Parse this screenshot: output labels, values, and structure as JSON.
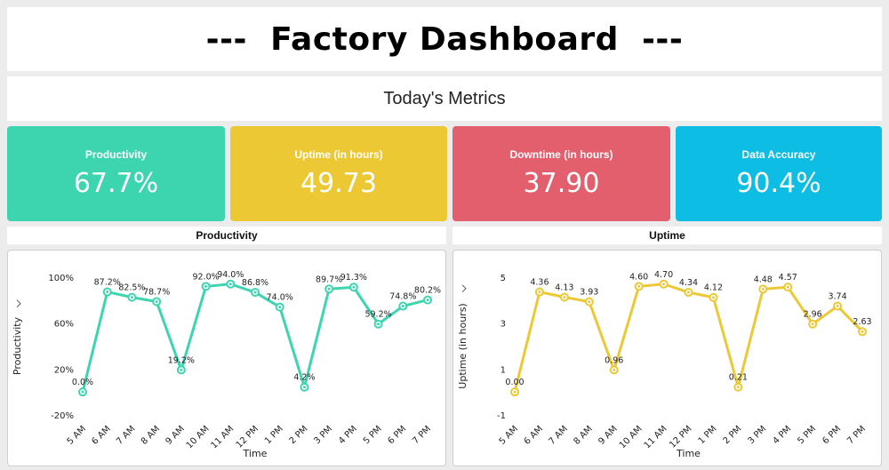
{
  "header": {
    "title": "---  Factory Dashboard  ---"
  },
  "metrics": {
    "heading": "Today's Metrics",
    "cards": [
      {
        "label": "Productivity",
        "value": "67.7%",
        "color": "#3dd5b0"
      },
      {
        "label": "Uptime (in hours)",
        "value": "49.73",
        "color": "#ecc934"
      },
      {
        "label": "Downtime (in hours)",
        "value": "37.90",
        "color": "#e45f6e"
      },
      {
        "label": "Data Accuracy",
        "value": "90.4%",
        "color": "#0dbde3"
      }
    ]
  },
  "chart_data": [
    {
      "type": "line",
      "title": "Productivity",
      "xlabel": "Time",
      "ylabel": "Productivity",
      "ylim": [
        -20,
        100
      ],
      "yticks": [
        "-20%",
        "20%",
        "60%",
        "100%"
      ],
      "ytick_values": [
        -20,
        20,
        60,
        100
      ],
      "categories": [
        "5 AM",
        "6 AM",
        "7 AM",
        "8 AM",
        "9 AM",
        "10 AM",
        "11 AM",
        "12 PM",
        "1 PM",
        "2 PM",
        "3 PM",
        "4 PM",
        "5 PM",
        "6 PM",
        "7 PM"
      ],
      "values": [
        0.0,
        87.2,
        82.5,
        78.7,
        19.2,
        92.0,
        94.0,
        86.8,
        74.0,
        4.2,
        89.7,
        91.3,
        59.2,
        74.8,
        80.2
      ],
      "labels": [
        "0.0%",
        "87.2%",
        "82.5%",
        "78.7%",
        "19.2%",
        "92.0%",
        "94.0%",
        "86.8%",
        "74.0%",
        "4.2%",
        "89.7%",
        "91.3%",
        "59.2%",
        "74.8%",
        "80.2%"
      ],
      "color": "#3dd5b0",
      "grid": false,
      "legend": "none"
    },
    {
      "type": "line",
      "title": "Uptime",
      "xlabel": "Time",
      "ylabel": "Uptime (in hours)",
      "ylim": [
        -1,
        5
      ],
      "yticks": [
        "-1",
        "1",
        "3",
        "5"
      ],
      "ytick_values": [
        -1,
        1,
        3,
        5
      ],
      "categories": [
        "5 AM",
        "6 AM",
        "7 AM",
        "8 AM",
        "9 AM",
        "10 AM",
        "11 AM",
        "12 PM",
        "1 PM",
        "2 PM",
        "3 PM",
        "4 PM",
        "5 PM",
        "6 PM",
        "7 PM"
      ],
      "values": [
        0.0,
        4.36,
        4.13,
        3.93,
        0.96,
        4.6,
        4.7,
        4.34,
        4.12,
        0.21,
        4.48,
        4.57,
        2.96,
        3.74,
        2.63
      ],
      "labels": [
        "0.00",
        "4.36",
        "4.13",
        "3.93",
        "0.96",
        "4.60",
        "4.70",
        "4.34",
        "4.12",
        "0.21",
        "4.48",
        "4.57",
        "2.96",
        "3.74",
        "2.63"
      ],
      "color": "#ecc934",
      "grid": false,
      "legend": "none"
    }
  ]
}
